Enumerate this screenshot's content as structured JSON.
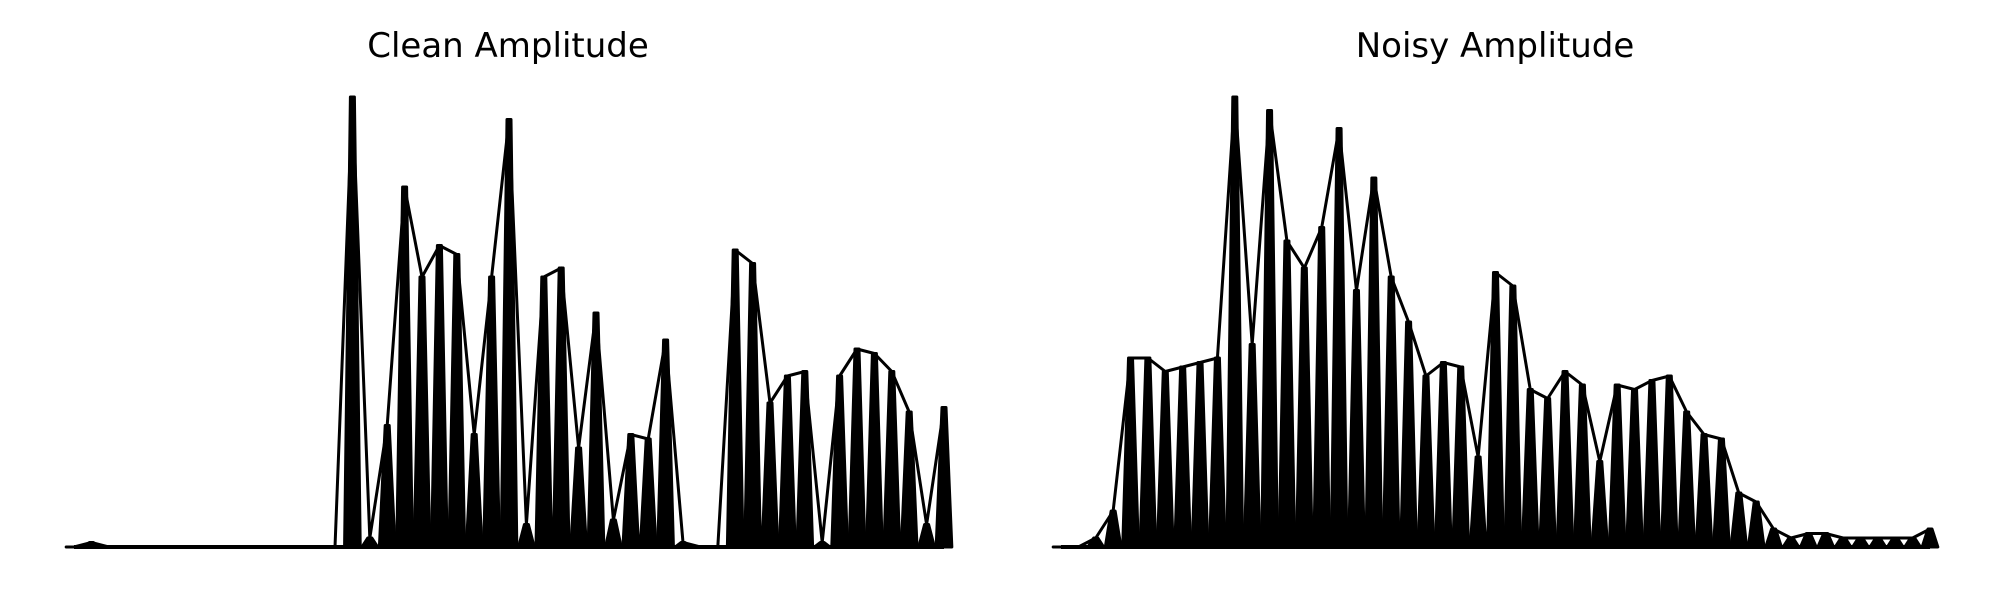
{
  "figure": {
    "background": "#ffffff",
    "line_color": "#000000"
  },
  "chart_data": [
    {
      "type": "area",
      "title": "Clean Amplitude",
      "xlabel": "",
      "ylabel": "",
      "axes_visible": false,
      "grid": false,
      "ylim": [
        0,
        1
      ],
      "x": [
        0,
        2,
        4,
        6,
        8,
        10,
        12,
        14,
        16,
        18,
        20,
        22,
        24,
        26,
        28,
        30,
        32,
        34,
        36,
        38,
        40,
        42,
        44,
        46,
        48,
        50,
        52,
        54,
        56,
        58,
        60,
        62,
        64,
        66,
        68,
        70,
        72,
        74,
        76,
        78,
        80,
        82,
        84,
        86,
        88,
        90,
        92,
        94,
        96,
        98,
        100
      ],
      "y": [
        0.0,
        0.01,
        0.0,
        0.0,
        0.0,
        0.0,
        0.0,
        0.0,
        0.0,
        0.0,
        0.0,
        0.0,
        0.0,
        0.0,
        0.0,
        0.0,
        1.0,
        0.02,
        0.27,
        0.8,
        0.6,
        0.67,
        0.65,
        0.25,
        0.6,
        0.95,
        0.05,
        0.6,
        0.62,
        0.22,
        0.52,
        0.06,
        0.25,
        0.24,
        0.46,
        0.01,
        0.0,
        0.0,
        0.66,
        0.63,
        0.32,
        0.38,
        0.39,
        0.01,
        0.38,
        0.44,
        0.43,
        0.39,
        0.3,
        0.05,
        0.31
      ]
    },
    {
      "type": "area",
      "title": "Noisy Amplitude",
      "xlabel": "",
      "ylabel": "",
      "axes_visible": false,
      "grid": false,
      "ylim": [
        0,
        1
      ],
      "x": [
        0,
        2,
        4,
        6,
        8,
        10,
        12,
        14,
        16,
        18,
        20,
        22,
        24,
        26,
        28,
        30,
        32,
        34,
        36,
        38,
        40,
        42,
        44,
        46,
        48,
        50,
        52,
        54,
        56,
        58,
        60,
        62,
        64,
        66,
        68,
        70,
        72,
        74,
        76,
        78,
        80,
        82,
        84,
        86,
        88,
        90,
        92,
        94,
        96,
        98,
        100
      ],
      "y": [
        0.0,
        0.0,
        0.02,
        0.08,
        0.42,
        0.42,
        0.39,
        0.4,
        0.41,
        0.42,
        1.0,
        0.45,
        0.97,
        0.68,
        0.62,
        0.71,
        0.93,
        0.57,
        0.82,
        0.6,
        0.5,
        0.38,
        0.41,
        0.4,
        0.2,
        0.61,
        0.58,
        0.35,
        0.33,
        0.39,
        0.36,
        0.19,
        0.36,
        0.35,
        0.37,
        0.38,
        0.3,
        0.25,
        0.24,
        0.12,
        0.1,
        0.04,
        0.02,
        0.03,
        0.03,
        0.02,
        0.02,
        0.02,
        0.02,
        0.02,
        0.04
      ]
    }
  ]
}
